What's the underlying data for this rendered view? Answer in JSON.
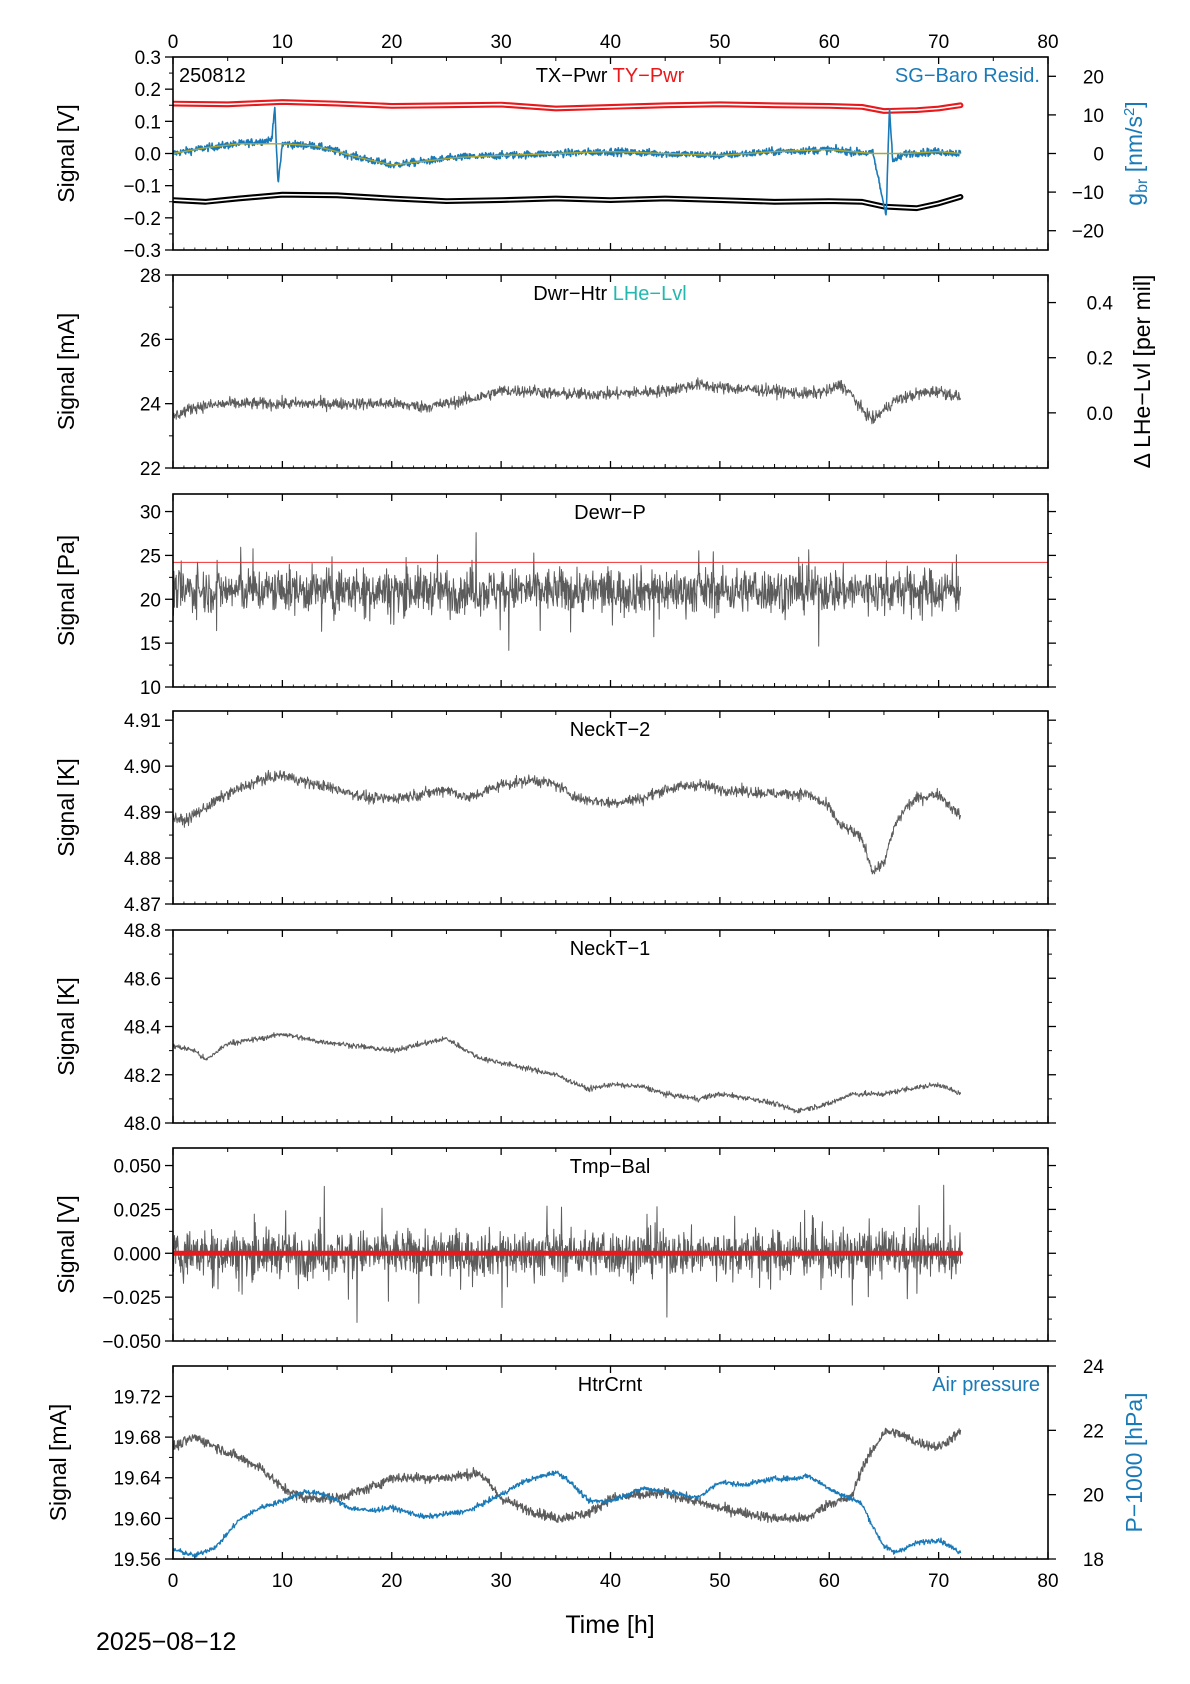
{
  "colors": {
    "black": "#000000",
    "red": "#e8191c",
    "blue": "#1a7ab8",
    "teal": "#22b8b0",
    "olive": "#a8a838",
    "gray": "#5c5c5c",
    "pink": "#f2a0a0",
    "red_line": "#f03030",
    "white": "#ffffff"
  },
  "footer": {
    "date": "2025−08−12"
  },
  "x_axis": {
    "label": "Time [h]",
    "range": [
      0,
      80
    ],
    "ticks": [
      0,
      10,
      20,
      30,
      40,
      50,
      60,
      70,
      80
    ],
    "tick_labels": [
      "0",
      "10",
      "20",
      "30",
      "40",
      "50",
      "60",
      "70",
      "80"
    ]
  },
  "chart_data": [
    {
      "type": "line",
      "id": "tilt",
      "stamp": "250812",
      "ylabel": "Signal [V]",
      "ylim": [
        -0.3,
        0.3
      ],
      "yticks": [
        -0.3,
        -0.2,
        -0.1,
        0.0,
        0.1,
        0.2,
        0.3
      ],
      "ytick_labels": [
        "−0.3",
        "−0.2",
        "−0.1",
        "0.0",
        "0.1",
        "0.2",
        "0.3"
      ],
      "right_axis": {
        "label_main": "g",
        "label_sub": "br",
        "label_unit": " [nm/s",
        "label_sup": "2",
        "label_close": "]",
        "ylim": [
          -25,
          25
        ],
        "ticks": [
          -20,
          -10,
          0,
          10,
          20
        ],
        "tick_labels": [
          "−20",
          "−10",
          "0",
          "10",
          "20"
        ]
      },
      "legend": [
        {
          "label": "TX−Pwr",
          "color": "black"
        },
        {
          "label": "TY−Pwr",
          "color": "red"
        }
      ],
      "legend_right": {
        "label": "SG−Baro Resid.",
        "color": "blue"
      },
      "series": [
        {
          "label": "TY−Pwr",
          "color": "red",
          "halo": true,
          "width": 2.6,
          "x": [
            0,
            5,
            10,
            15,
            20,
            25,
            30,
            35,
            40,
            45,
            50,
            55,
            60,
            63,
            65,
            68,
            70,
            72
          ],
          "y": [
            0.155,
            0.153,
            0.16,
            0.155,
            0.148,
            0.15,
            0.152,
            0.14,
            0.145,
            0.15,
            0.153,
            0.15,
            0.148,
            0.145,
            0.132,
            0.135,
            0.14,
            0.15
          ]
        },
        {
          "label": "TX−Pwr",
          "color": "black",
          "halo": true,
          "width": 2.6,
          "x": [
            0,
            3,
            6,
            10,
            15,
            20,
            25,
            30,
            35,
            40,
            45,
            50,
            55,
            60,
            63,
            65,
            68,
            70,
            72
          ],
          "y": [
            -0.145,
            -0.15,
            -0.14,
            -0.128,
            -0.13,
            -0.14,
            -0.148,
            -0.145,
            -0.14,
            -0.145,
            -0.14,
            -0.145,
            -0.15,
            -0.148,
            -0.15,
            -0.165,
            -0.17,
            -0.155,
            -0.135
          ]
        },
        {
          "label": "SG−Baro Resid.",
          "axis": "right",
          "color": "blue",
          "width": 1.6,
          "noise": 0.9,
          "x": [
            0,
            3,
            6,
            9.0,
            9.3,
            9.6,
            10,
            13,
            17,
            20,
            23,
            26,
            30,
            35,
            40,
            45,
            50,
            55,
            60,
            64,
            65.2,
            65.5,
            65.8,
            67,
            70,
            72
          ],
          "y": [
            0,
            1.5,
            2.5,
            3.5,
            12,
            -8,
            2.5,
            2,
            -1,
            -3,
            -2,
            -1,
            -0.5,
            0,
            0.5,
            0,
            -0.5,
            0.5,
            1,
            0,
            -16,
            12,
            -2,
            0,
            0.5,
            0
          ]
        },
        {
          "label": "SG−Baro Resid. (smoothed)",
          "axis": "right",
          "color": "olive",
          "width": 1.4,
          "x": [
            0,
            3,
            6,
            10,
            13,
            17,
            20,
            23,
            26,
            30,
            35,
            40,
            45,
            50,
            55,
            60,
            64,
            67,
            70,
            72
          ],
          "y": [
            0,
            1.5,
            2.5,
            2.5,
            2,
            -1,
            -3,
            -2,
            -1,
            -0.5,
            0,
            0.5,
            0,
            -0.5,
            0.5,
            1,
            0,
            0,
            0.5,
            0
          ]
        }
      ]
    },
    {
      "type": "line",
      "id": "dwr_htr",
      "ylabel": "Signal [mA]",
      "ylim": [
        22,
        28
      ],
      "yticks": [
        22,
        24,
        26,
        28
      ],
      "ytick_labels": [
        "22",
        "24",
        "26",
        "28"
      ],
      "right_axis": {
        "label_main": "Δ LHe−Lvl [per mil]",
        "ylim": [
          -0.2,
          0.5
        ],
        "ticks": [
          0.0,
          0.2,
          0.4
        ],
        "tick_labels": [
          "0.0",
          "0.2",
          "0.4"
        ]
      },
      "legend": [
        {
          "label": "Dwr−Htr",
          "color": "black"
        },
        {
          "label": "LHe−Lvl",
          "color": "teal"
        }
      ],
      "series": [
        {
          "label": "Dwr−Htr",
          "color": "gray",
          "width": 1,
          "noise": 0.17,
          "x": [
            0,
            2,
            5,
            8,
            10,
            15,
            20,
            23,
            25,
            28,
            30,
            33,
            35,
            40,
            45,
            48,
            50,
            55,
            58,
            60,
            61,
            62,
            63,
            64,
            66,
            68,
            70,
            72
          ],
          "y": [
            23.6,
            23.9,
            24.0,
            24.0,
            24.0,
            24.0,
            24.0,
            23.9,
            24.0,
            24.2,
            24.4,
            24.4,
            24.3,
            24.3,
            24.4,
            24.6,
            24.5,
            24.4,
            24.3,
            24.4,
            24.6,
            24.3,
            23.8,
            23.5,
            24.1,
            24.3,
            24.4,
            24.2
          ]
        }
      ]
    },
    {
      "type": "line",
      "id": "dewr_p",
      "ylabel": "Signal [Pa]",
      "ylim": [
        10,
        32
      ],
      "yticks": [
        10,
        15,
        20,
        25,
        30
      ],
      "ytick_labels": [
        "10",
        "15",
        "20",
        "25",
        "30"
      ],
      "legend": [
        {
          "label": "Dewr−P",
          "color": "black"
        }
      ],
      "series": [
        {
          "label": "Dewr−P",
          "color": "gray",
          "width": 1,
          "noise": 2.3,
          "spikes": 5,
          "x": [
            0,
            72
          ],
          "y": [
            21,
            21
          ]
        },
        {
          "label": "threshold",
          "color": "red_line",
          "width": 1,
          "to_edge": true,
          "x": [
            0,
            80
          ],
          "y": [
            24.2,
            24.2
          ]
        }
      ]
    },
    {
      "type": "line",
      "id": "neckt2",
      "ylabel": "Signal [K]",
      "ylim": [
        4.87,
        4.912
      ],
      "yticks": [
        4.87,
        4.88,
        4.89,
        4.9,
        4.91
      ],
      "ytick_labels": [
        "4.87",
        "4.88",
        "4.89",
        "4.90",
        "4.91"
      ],
      "legend": [
        {
          "label": "NeckT−2",
          "color": "black"
        }
      ],
      "series": [
        {
          "label": "NeckT−2",
          "color": "gray",
          "width": 1,
          "noise": 0.0011,
          "x": [
            0,
            1,
            3,
            5,
            8,
            10,
            13,
            15,
            18,
            20,
            23,
            25,
            27,
            30,
            33,
            35,
            37,
            40,
            43,
            45,
            48,
            50,
            55,
            58,
            60,
            61,
            62,
            63,
            64,
            65,
            66,
            67,
            68,
            70,
            72
          ],
          "y": [
            4.889,
            4.888,
            4.891,
            4.894,
            4.897,
            4.898,
            4.896,
            4.895,
            4.893,
            4.893,
            4.894,
            4.895,
            4.893,
            4.896,
            4.897,
            4.896,
            4.893,
            4.892,
            4.893,
            4.895,
            4.896,
            4.895,
            4.894,
            4.894,
            4.891,
            4.887,
            4.886,
            4.884,
            4.877,
            4.879,
            4.887,
            4.891,
            4.893,
            4.894,
            4.889
          ]
        }
      ]
    },
    {
      "type": "line",
      "id": "neckt1",
      "ylabel": "Signal [K]",
      "ylim": [
        48.0,
        48.8
      ],
      "yticks": [
        48.0,
        48.2,
        48.4,
        48.6,
        48.8
      ],
      "ytick_labels": [
        "48.0",
        "48.2",
        "48.4",
        "48.6",
        "48.8"
      ],
      "legend": [
        {
          "label": "NeckT−1",
          "color": "black"
        }
      ],
      "series": [
        {
          "label": "NeckT−1",
          "color": "gray",
          "width": 1,
          "noise": 0.01,
          "x": [
            0,
            2,
            3,
            5,
            8,
            10,
            13,
            15,
            20,
            25,
            28,
            30,
            33,
            35,
            38,
            40,
            43,
            45,
            48,
            50,
            53,
            55,
            57,
            60,
            62,
            65,
            67,
            70,
            72
          ],
          "y": [
            48.32,
            48.3,
            48.26,
            48.33,
            48.35,
            48.37,
            48.34,
            48.33,
            48.3,
            48.35,
            48.27,
            48.25,
            48.22,
            48.2,
            48.14,
            48.16,
            48.15,
            48.12,
            48.1,
            48.12,
            48.1,
            48.08,
            48.05,
            48.08,
            48.12,
            48.12,
            48.14,
            48.16,
            48.12
          ]
        }
      ]
    },
    {
      "type": "line",
      "id": "tmp_bal",
      "ylabel": "Signal [V]",
      "ylim": [
        -0.05,
        0.06
      ],
      "yticks": [
        -0.05,
        -0.025,
        0.0,
        0.025,
        0.05
      ],
      "ytick_labels": [
        "−0.050",
        "−0.025",
        "0.000",
        "0.025",
        "0.050"
      ],
      "legend": [
        {
          "label": "Tmp−Bal",
          "color": "black"
        }
      ],
      "series": [
        {
          "label": "Tmp−Bal",
          "color": "gray",
          "width": 1,
          "noise": 0.012,
          "spikes": 0.03,
          "x": [
            0,
            72
          ],
          "y": [
            0,
            0
          ]
        },
        {
          "label": "zero line",
          "color": "red",
          "width": 5,
          "x": [
            0,
            72
          ],
          "y": [
            0,
            0
          ]
        }
      ]
    },
    {
      "type": "line",
      "id": "htr_crnt",
      "ylabel": "Signal [mA]",
      "ylim": [
        19.56,
        19.75
      ],
      "yticks": [
        19.56,
        19.6,
        19.64,
        19.68,
        19.72
      ],
      "ytick_labels": [
        "19.56",
        "19.60",
        "19.64",
        "19.68",
        "19.72"
      ],
      "right_axis": {
        "label_main": "P−1000 [hPa]",
        "ylim": [
          18,
          24
        ],
        "ticks": [
          18,
          20,
          22,
          24
        ],
        "tick_labels": [
          "18",
          "20",
          "22",
          "24"
        ]
      },
      "legend": [
        {
          "label": "HtrCrnt",
          "color": "black"
        }
      ],
      "legend_right": {
        "label": "Air pressure",
        "color": "blue"
      },
      "series": [
        {
          "label": "HtrCrnt",
          "color": "gray",
          "width": 1.2,
          "noise": 0.0045,
          "x": [
            0,
            2,
            4,
            6,
            8,
            10,
            12,
            15,
            18,
            20,
            25,
            28,
            30,
            32,
            35,
            38,
            40,
            45,
            50,
            55,
            58,
            60,
            62,
            63,
            65,
            66,
            68,
            70,
            72
          ],
          "y": [
            19.67,
            19.68,
            19.67,
            19.66,
            19.65,
            19.63,
            19.62,
            19.62,
            19.63,
            19.64,
            19.64,
            19.645,
            19.62,
            19.61,
            19.6,
            19.605,
            19.62,
            19.625,
            19.61,
            19.6,
            19.6,
            19.615,
            19.62,
            19.65,
            19.685,
            19.685,
            19.675,
            19.67,
            19.685
          ]
        },
        {
          "label": "Air pressure",
          "axis": "right",
          "color": "blue",
          "width": 1.3,
          "noise": 0.07,
          "x": [
            0,
            1,
            2,
            4,
            6,
            8,
            10,
            12,
            14,
            16,
            18,
            20,
            23,
            25,
            27,
            30,
            32,
            34,
            35,
            36,
            38,
            40,
            43,
            45,
            48,
            50,
            52,
            55,
            57,
            58,
            60,
            61,
            62,
            63,
            64,
            65,
            66,
            68,
            70,
            72
          ],
          "y": [
            18.3,
            18.2,
            18.1,
            18.4,
            19.2,
            19.6,
            19.8,
            20.1,
            20.0,
            19.6,
            19.5,
            19.6,
            19.3,
            19.4,
            19.5,
            20.0,
            20.4,
            20.6,
            20.7,
            20.5,
            19.8,
            19.8,
            20.2,
            20.1,
            19.9,
            20.4,
            20.3,
            20.5,
            20.5,
            20.6,
            20.2,
            20.0,
            19.9,
            19.7,
            19.0,
            18.4,
            18.2,
            18.5,
            18.6,
            18.2
          ]
        }
      ]
    }
  ]
}
